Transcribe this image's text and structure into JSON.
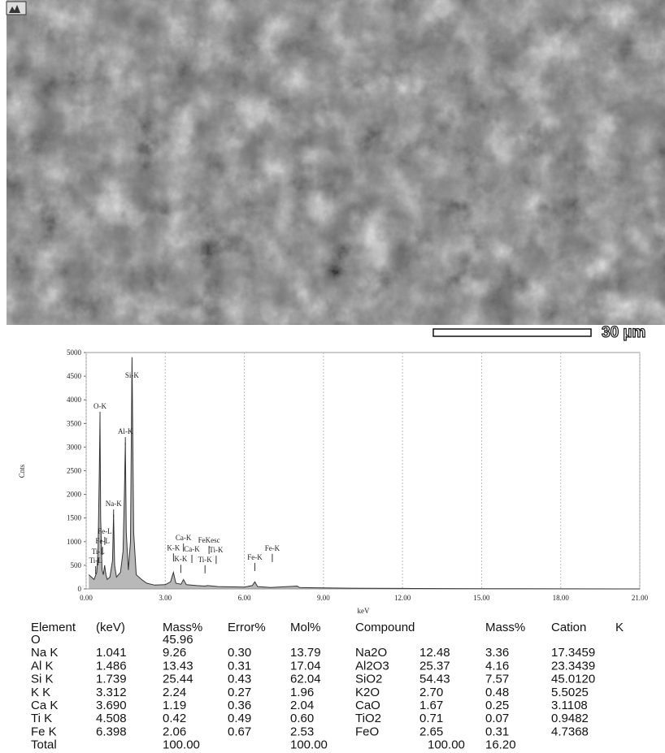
{
  "scale_bar": {
    "label": "30 µm"
  },
  "chart_data": {
    "type": "line",
    "x_label": "keV",
    "y_label": "Cnts",
    "x": [
      0.1,
      0.2,
      0.3,
      0.4,
      0.45,
      0.5,
      0.525,
      0.55,
      0.6,
      0.65,
      0.7,
      0.75,
      0.8,
      0.9,
      1.0,
      1.04,
      1.08,
      1.15,
      1.3,
      1.4,
      1.45,
      1.486,
      1.52,
      1.6,
      1.68,
      1.74,
      1.8,
      1.9,
      2.0,
      2.1,
      2.3,
      2.6,
      3.0,
      3.2,
      3.31,
      3.4,
      3.6,
      3.69,
      3.8,
      4.2,
      4.5,
      4.6,
      5.0,
      6.0,
      6.3,
      6.4,
      6.5,
      7.0,
      8.0,
      8.1,
      9.0,
      10.0,
      12.0,
      15.0,
      21.0
    ],
    "values": [
      300,
      250,
      200,
      350,
      800,
      2500,
      3650,
      1500,
      400,
      300,
      500,
      300,
      200,
      250,
      600,
      1580,
      500,
      250,
      350,
      800,
      2000,
      3100,
      1200,
      400,
      1000,
      4900,
      1200,
      300,
      250,
      200,
      120,
      80,
      90,
      150,
      350,
      120,
      100,
      200,
      90,
      70,
      60,
      70,
      50,
      40,
      70,
      150,
      50,
      30,
      60,
      30,
      20,
      15,
      10,
      5,
      0
    ],
    "color": "#333333",
    "xlim": [
      0,
      21
    ],
    "ylim": [
      0,
      5000
    ],
    "xticks": [
      {
        "value": 0,
        "label": "0.00"
      },
      {
        "value": 3,
        "label": "3.00"
      },
      {
        "value": 6,
        "label": "6.00"
      },
      {
        "value": 9,
        "label": "9.00"
      },
      {
        "value": 12,
        "label": "12.00"
      },
      {
        "value": 15,
        "label": "15.00"
      },
      {
        "value": 18,
        "label": "18.00"
      },
      {
        "value": 21,
        "label": "21.00"
      }
    ],
    "yticks": [
      0,
      500,
      1000,
      1500,
      2000,
      2500,
      3000,
      3500,
      4000,
      4500,
      5000
    ],
    "grid": true,
    "peak_labels": [
      {
        "label": "O-K",
        "x": 0.525,
        "y": 3815
      },
      {
        "label": "Si-K",
        "x": 1.74,
        "y": 4470
      },
      {
        "label": "Al-K",
        "x": 1.486,
        "y": 3280
      },
      {
        "label": "Na-K",
        "x": 1.04,
        "y": 1750
      },
      {
        "label": "Fe-L",
        "x": 0.705,
        "y": 1170
      },
      {
        "label": "Fe-L",
        "x": 0.62,
        "y": 960
      },
      {
        "label": "Ti-L",
        "x": 0.452,
        "y": 740
      },
      {
        "label": "Ti-L",
        "x": 0.36,
        "y": 550
      },
      {
        "label": "Ca-K",
        "x": 3.69,
        "y": 1030
      },
      {
        "label": "FeKesc",
        "x": 4.66,
        "y": 980
      },
      {
        "label": "K-K",
        "x": 3.312,
        "y": 820
      },
      {
        "label": "Ca-K",
        "x": 4.01,
        "y": 790
      },
      {
        "label": "Ti-K",
        "x": 4.93,
        "y": 770
      },
      {
        "label": "K-K",
        "x": 3.59,
        "y": 580
      },
      {
        "label": "Ti-K",
        "x": 4.508,
        "y": 570
      },
      {
        "label": "Fe-K",
        "x": 6.398,
        "y": 620
      },
      {
        "label": "Fe-K",
        "x": 7.06,
        "y": 810
      }
    ]
  },
  "table": {
    "header": [
      "Element",
      "(keV)",
      "Mass%",
      "Error%",
      "Mol%",
      "Compound",
      null,
      "Mass%",
      "Cation",
      "K"
    ],
    "rows": [
      [
        "O",
        null,
        "45.96",
        null,
        null,
        null,
        null,
        null,
        null,
        null
      ],
      [
        "Na K",
        "1.041",
        "9.26",
        "0.30",
        "13.79",
        "Na2O",
        "12.48",
        "3.36",
        "17.3459",
        null
      ],
      [
        "Al K",
        "1.486",
        "13.43",
        "0.31",
        "17.04",
        "Al2O3",
        "25.37",
        "4.16",
        "23.3439",
        null
      ],
      [
        "Si K",
        "1.739",
        "25.44",
        "0.43",
        "62.04",
        "SiO2",
        "54.43",
        "7.57",
        "45.0120",
        null
      ],
      [
        "K  K",
        "3.312",
        "2.24",
        "0.27",
        "1.96",
        "K2O",
        "2.70",
        "0.48",
        "5.5025",
        null
      ],
      [
        "Ca K",
        "3.690",
        "1.19",
        "0.36",
        "2.04",
        "CaO",
        "1.67",
        "0.25",
        "3.1108",
        null
      ],
      [
        "Ti K",
        "4.508",
        "0.42",
        "0.49",
        "0.60",
        "TiO2",
        "0.71",
        "0.07",
        "0.9482",
        null
      ],
      [
        "Fe K",
        "6.398",
        "2.06",
        "0.67",
        "2.53",
        "FeO",
        "2.65",
        "0.31",
        "4.7368",
        null
      ],
      [
        "Total",
        null,
        "100.00",
        null,
        "100.00",
        null,
        "100.00",
        "16.20",
        null,
        null
      ]
    ]
  }
}
